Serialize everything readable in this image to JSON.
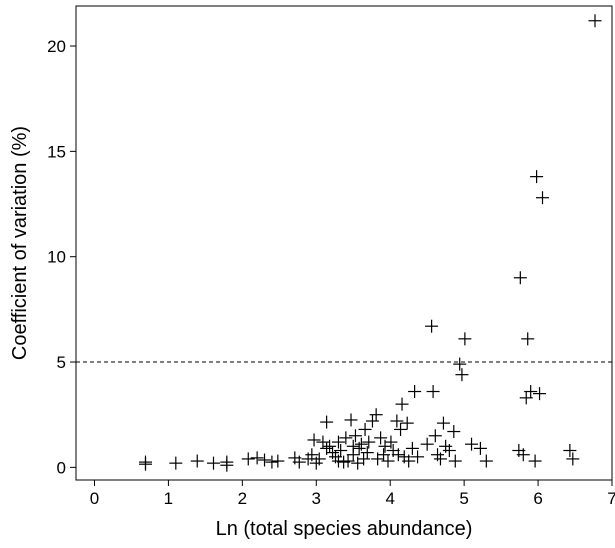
{
  "chart_data": {
    "type": "scatter",
    "title": "",
    "xlabel": "Ln (total species abundance)",
    "ylabel": "Coefficient of variation (%)",
    "xlim": [
      -0.25,
      7.0
    ],
    "ylim": [
      -0.6,
      21.9
    ],
    "xticks": [
      0,
      1,
      2,
      3,
      4,
      5,
      6,
      7
    ],
    "yticks": [
      0,
      5,
      10,
      15,
      20
    ],
    "marker": "plus",
    "grid": false,
    "legend": "none",
    "reference_line": {
      "y": 5,
      "style": "dashed"
    },
    "points": [
      [
        0.69,
        0.15
      ],
      [
        0.69,
        0.25
      ],
      [
        1.1,
        0.2
      ],
      [
        1.39,
        0.3
      ],
      [
        1.61,
        0.2
      ],
      [
        1.79,
        0.25
      ],
      [
        1.79,
        0.1
      ],
      [
        2.08,
        0.4
      ],
      [
        2.2,
        0.45
      ],
      [
        2.3,
        0.35
      ],
      [
        2.4,
        0.25
      ],
      [
        2.48,
        0.3
      ],
      [
        2.71,
        0.45
      ],
      [
        2.77,
        0.25
      ],
      [
        2.89,
        0.4
      ],
      [
        2.94,
        0.6
      ],
      [
        2.97,
        1.3
      ],
      [
        3.0,
        0.2
      ],
      [
        3.04,
        0.4
      ],
      [
        3.09,
        1.2
      ],
      [
        3.14,
        2.15
      ],
      [
        3.14,
        0.9
      ],
      [
        3.18,
        1.0
      ],
      [
        3.22,
        0.7
      ],
      [
        3.26,
        0.5
      ],
      [
        3.3,
        0.3
      ],
      [
        3.3,
        1.2
      ],
      [
        3.33,
        0.8
      ],
      [
        3.37,
        0.25
      ],
      [
        3.4,
        1.4
      ],
      [
        3.43,
        0.3
      ],
      [
        3.47,
        2.25
      ],
      [
        3.5,
        1.0
      ],
      [
        3.5,
        0.6
      ],
      [
        3.53,
        1.5
      ],
      [
        3.56,
        0.2
      ],
      [
        3.58,
        0.9
      ],
      [
        3.61,
        1.1
      ],
      [
        3.64,
        0.4
      ],
      [
        3.66,
        1.8
      ],
      [
        3.69,
        0.7
      ],
      [
        3.71,
        1.2
      ],
      [
        3.76,
        2.2
      ],
      [
        3.81,
        2.5
      ],
      [
        3.83,
        0.4
      ],
      [
        3.87,
        1.4
      ],
      [
        3.91,
        0.6
      ],
      [
        3.93,
        1.0
      ],
      [
        3.97,
        0.3
      ],
      [
        4.01,
        1.2
      ],
      [
        4.04,
        0.8
      ],
      [
        4.09,
        2.2
      ],
      [
        4.11,
        0.6
      ],
      [
        4.14,
        1.8
      ],
      [
        4.16,
        3.0
      ],
      [
        4.19,
        0.5
      ],
      [
        4.23,
        2.1
      ],
      [
        4.25,
        0.3
      ],
      [
        4.3,
        0.9
      ],
      [
        4.33,
        3.6
      ],
      [
        4.37,
        0.5
      ],
      [
        4.5,
        1.1
      ],
      [
        4.56,
        6.7
      ],
      [
        4.58,
        3.6
      ],
      [
        4.61,
        1.5
      ],
      [
        4.64,
        0.6
      ],
      [
        4.68,
        0.4
      ],
      [
        4.72,
        2.1
      ],
      [
        4.75,
        1.0
      ],
      [
        4.8,
        0.8
      ],
      [
        4.86,
        1.7
      ],
      [
        4.88,
        0.3
      ],
      [
        4.94,
        4.9
      ],
      [
        4.97,
        4.4
      ],
      [
        5.01,
        6.1
      ],
      [
        5.1,
        1.1
      ],
      [
        5.22,
        0.9
      ],
      [
        5.3,
        0.3
      ],
      [
        5.74,
        0.8
      ],
      [
        5.76,
        9.0
      ],
      [
        5.8,
        0.6
      ],
      [
        5.84,
        3.3
      ],
      [
        5.86,
        6.1
      ],
      [
        5.9,
        3.6
      ],
      [
        5.96,
        0.3
      ],
      [
        5.98,
        13.8
      ],
      [
        6.02,
        3.5
      ],
      [
        6.06,
        12.8
      ],
      [
        6.43,
        0.8
      ],
      [
        6.47,
        0.4
      ],
      [
        6.77,
        21.2
      ]
    ]
  }
}
